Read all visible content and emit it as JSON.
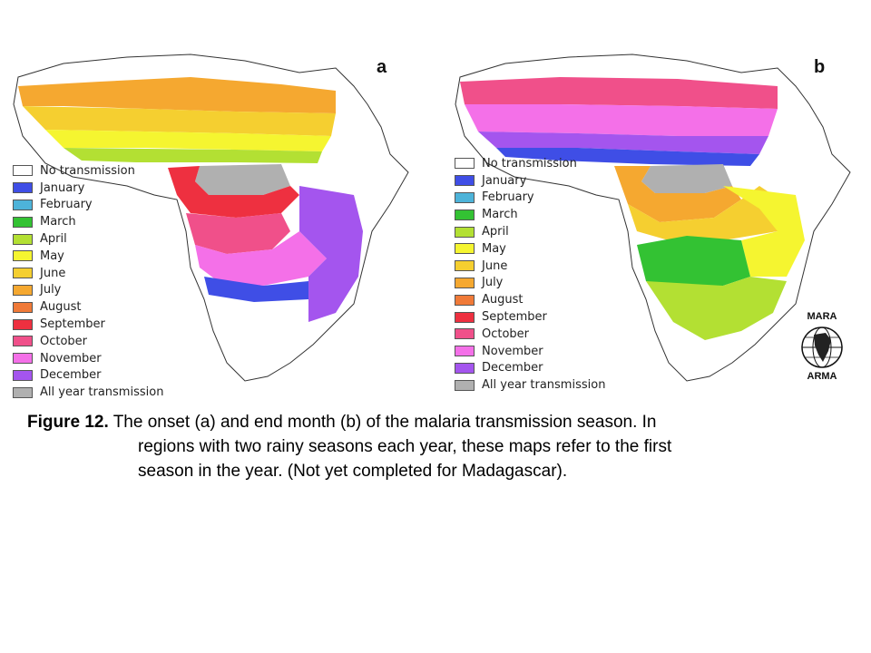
{
  "figure": {
    "label": "Figure 12.",
    "caption_line1": "The onset (a) and end month (b) of the malaria transmission season. In",
    "caption_line2": "regions with two rainy seasons each year, these maps refer to the first",
    "caption_line3": "season in the year. (Not yet completed for Madagascar)."
  },
  "panels": [
    {
      "letter": "a"
    },
    {
      "letter": "b"
    }
  ],
  "legend": [
    {
      "label": "No transmission",
      "color": "#ffffff"
    },
    {
      "label": "January",
      "color": "#3f4ee6"
    },
    {
      "label": "February",
      "color": "#4db3d9"
    },
    {
      "label": "March",
      "color": "#33c233"
    },
    {
      "label": "April",
      "color": "#b3e033"
    },
    {
      "label": "May",
      "color": "#f5f530"
    },
    {
      "label": "June",
      "color": "#f5cf30"
    },
    {
      "label": "July",
      "color": "#f5a830"
    },
    {
      "label": "August",
      "color": "#f07a38"
    },
    {
      "label": "September",
      "color": "#ee3040"
    },
    {
      "label": "October",
      "color": "#f0508a"
    },
    {
      "label": "November",
      "color": "#f470e8"
    },
    {
      "label": "December",
      "color": "#a455ee"
    },
    {
      "label": "All year transmission",
      "color": "#b0b0b0"
    }
  ],
  "logo": {
    "top_text": "MARA",
    "bottom_text": "ARMA"
  }
}
